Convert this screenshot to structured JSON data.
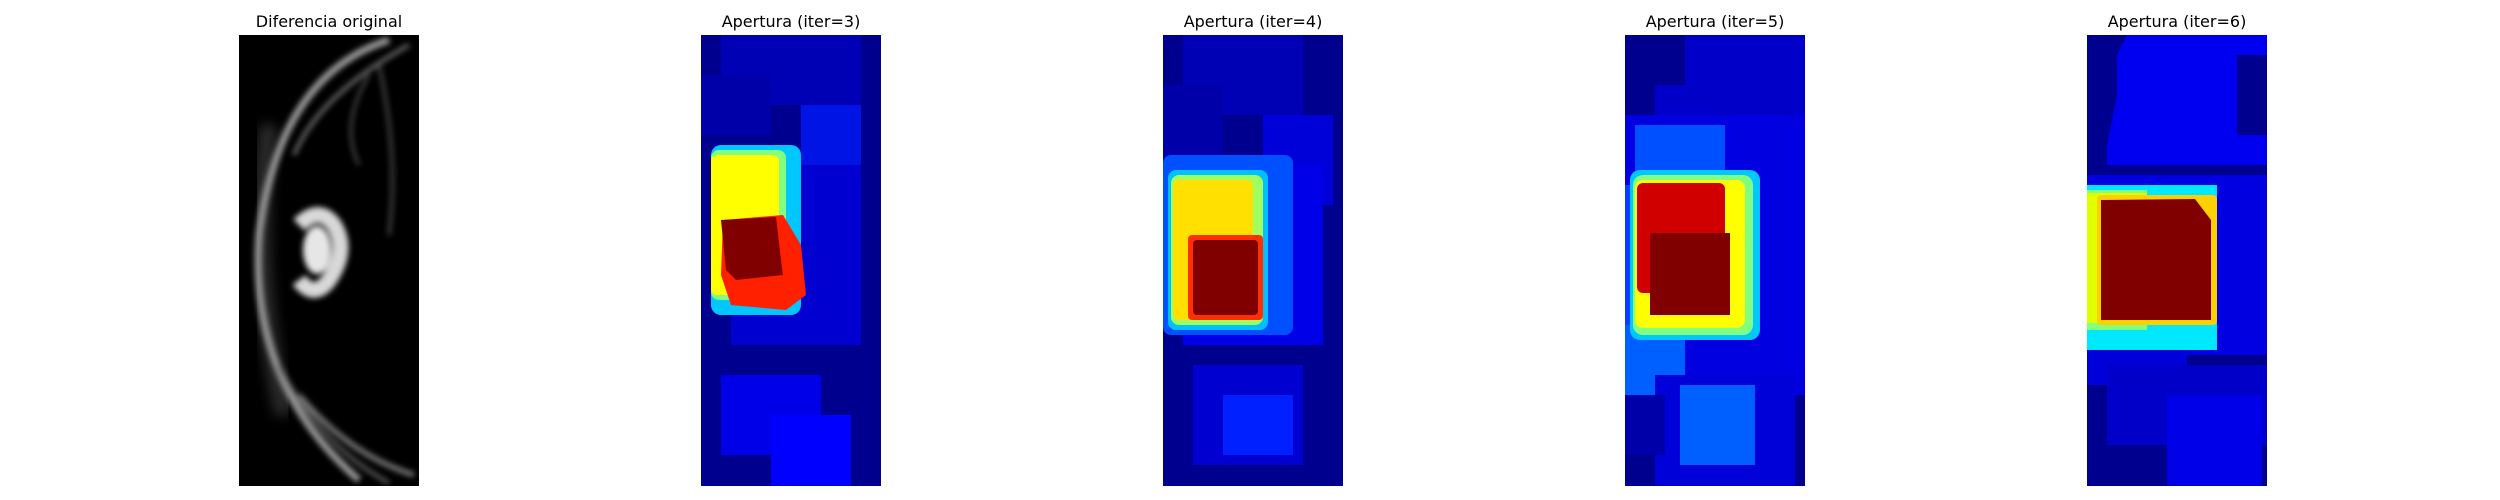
{
  "panels": [
    {
      "title": "Diferencia original",
      "colormap": "gray"
    },
    {
      "title": "Apertura (iter=3)",
      "colormap": "jet"
    },
    {
      "title": "Apertura (iter=4)",
      "colormap": "jet"
    },
    {
      "title": "Apertura (iter=5)",
      "colormap": "jet"
    },
    {
      "title": "Apertura (iter=6)",
      "colormap": "jet"
    }
  ],
  "colors": {
    "background": "#ffffff",
    "jet_dark_blue": "#00008f",
    "jet_blue": "#0000ff",
    "jet_light_blue": "#0060ff",
    "jet_cyan": "#00ffff",
    "jet_yellow": "#ffff00",
    "jet_red": "#ff0000",
    "jet_dark_red": "#800000"
  }
}
